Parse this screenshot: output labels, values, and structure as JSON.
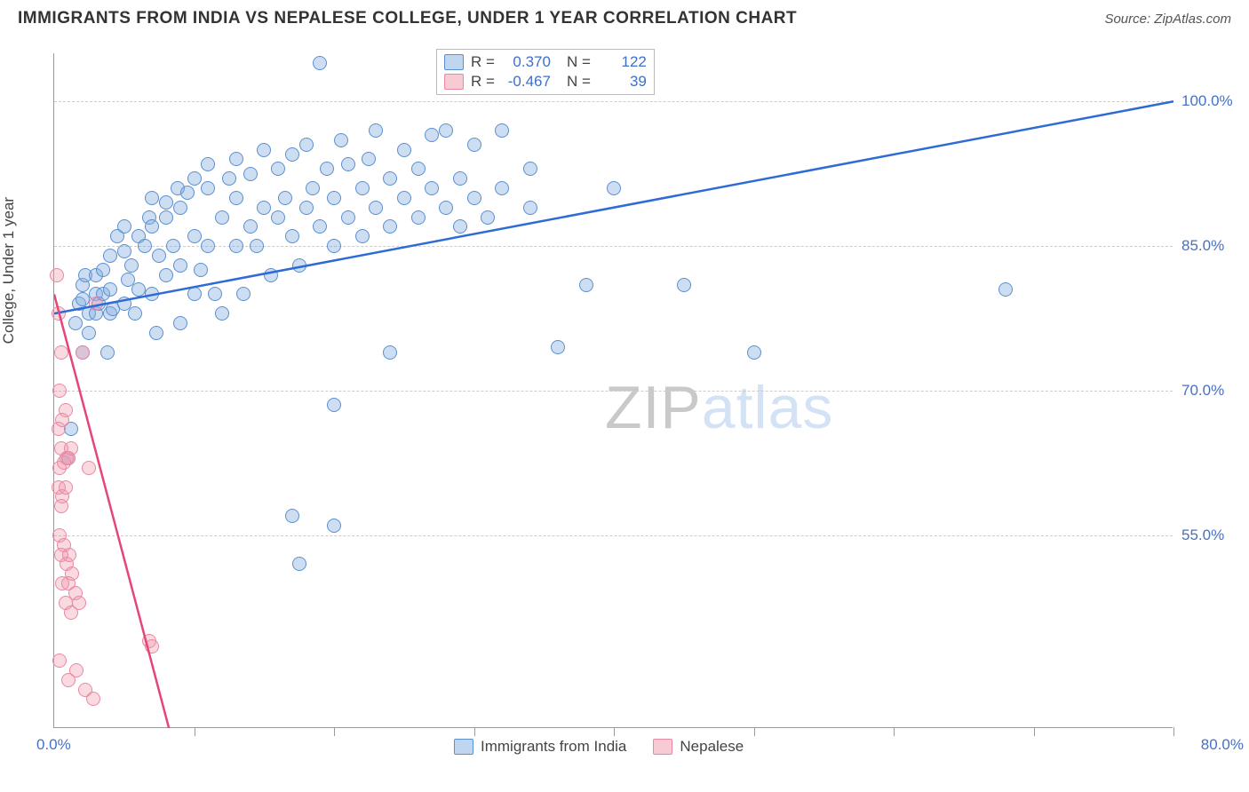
{
  "title": "IMMIGRANTS FROM INDIA VS NEPALESE COLLEGE, UNDER 1 YEAR CORRELATION CHART",
  "source": "Source: ZipAtlas.com",
  "ylabel": "College, Under 1 year",
  "watermark_zip": "ZIP",
  "watermark_atlas": "atlas",
  "legend_top": {
    "rows": [
      {
        "swatch": "blue",
        "r_label": "R =",
        "r": "0.370",
        "n_label": "N =",
        "n": "122"
      },
      {
        "swatch": "pink",
        "r_label": "R =",
        "r": "-0.467",
        "n_label": "N =",
        "n": "39"
      }
    ]
  },
  "legend_bottom": [
    {
      "swatch": "blue",
      "label": "Immigrants from India"
    },
    {
      "swatch": "pink",
      "label": "Nepalese"
    }
  ],
  "chart": {
    "type": "scatter",
    "xlim": [
      0,
      80
    ],
    "ylim": [
      35,
      105
    ],
    "x_ticks_every": 10,
    "y_ticks": [
      100.0,
      85.0,
      70.0,
      55.0
    ],
    "x_axis_min_label": "0.0%",
    "x_axis_max_label": "80.0%",
    "grid_color": "#cccccc",
    "background_color": "#ffffff",
    "series": [
      {
        "name": "india",
        "color_fill": "rgba(129,172,223,0.4)",
        "color_stroke": "#5a8fd0",
        "marker_radius": 8,
        "regression": {
          "x1": 0,
          "y1": 78,
          "x2": 80,
          "y2": 100,
          "color": "#2e6bd6",
          "width": 2.5
        },
        "points": [
          [
            1,
            63
          ],
          [
            1.2,
            66
          ],
          [
            1.5,
            77
          ],
          [
            1.8,
            79
          ],
          [
            2,
            79.5
          ],
          [
            2,
            81
          ],
          [
            2,
            74
          ],
          [
            2.2,
            82
          ],
          [
            2.5,
            76
          ],
          [
            2.5,
            78
          ],
          [
            3,
            78
          ],
          [
            3,
            80
          ],
          [
            3,
            82
          ],
          [
            3.2,
            79
          ],
          [
            3.5,
            82.5
          ],
          [
            3.5,
            80
          ],
          [
            3.8,
            74
          ],
          [
            4,
            78
          ],
          [
            4,
            80.5
          ],
          [
            4,
            84
          ],
          [
            4.2,
            78.5
          ],
          [
            4.5,
            86
          ],
          [
            5,
            79
          ],
          [
            5,
            84.5
          ],
          [
            5,
            87
          ],
          [
            5.3,
            81.5
          ],
          [
            5.5,
            83
          ],
          [
            5.8,
            78
          ],
          [
            6,
            80.5
          ],
          [
            6,
            86
          ],
          [
            6.5,
            85
          ],
          [
            6.8,
            88
          ],
          [
            7,
            80
          ],
          [
            7,
            87
          ],
          [
            7,
            90
          ],
          [
            7.3,
            76
          ],
          [
            7.5,
            84
          ],
          [
            8,
            82
          ],
          [
            8,
            88
          ],
          [
            8,
            89.5
          ],
          [
            8.5,
            85
          ],
          [
            8.8,
            91
          ],
          [
            9,
            83
          ],
          [
            9,
            77
          ],
          [
            9,
            89
          ],
          [
            9.5,
            90.5
          ],
          [
            10,
            80
          ],
          [
            10,
            86
          ],
          [
            10,
            92
          ],
          [
            10.5,
            82.5
          ],
          [
            11,
            85
          ],
          [
            11,
            91
          ],
          [
            11,
            93.5
          ],
          [
            11.5,
            80
          ],
          [
            12,
            88
          ],
          [
            12,
            78
          ],
          [
            12.5,
            92
          ],
          [
            13,
            85
          ],
          [
            13,
            90
          ],
          [
            13,
            94
          ],
          [
            13.5,
            80
          ],
          [
            14,
            87
          ],
          [
            14,
            92.5
          ],
          [
            14.5,
            85
          ],
          [
            15,
            89
          ],
          [
            15,
            95
          ],
          [
            15.5,
            82
          ],
          [
            16,
            88
          ],
          [
            16,
            93
          ],
          [
            16.5,
            90
          ],
          [
            17,
            86
          ],
          [
            17,
            94.5
          ],
          [
            17.5,
            83
          ],
          [
            18,
            89
          ],
          [
            18,
            95.5
          ],
          [
            18.5,
            91
          ],
          [
            19,
            87
          ],
          [
            19,
            104
          ],
          [
            19.5,
            93
          ],
          [
            20,
            85
          ],
          [
            20,
            90
          ],
          [
            20,
            68.5
          ],
          [
            20.5,
            96
          ],
          [
            21,
            88
          ],
          [
            21,
            93.5
          ],
          [
            22,
            86
          ],
          [
            22,
            91
          ],
          [
            22.5,
            94
          ],
          [
            23,
            89
          ],
          [
            23,
            97
          ],
          [
            24,
            87
          ],
          [
            24,
            92
          ],
          [
            24,
            74
          ],
          [
            25,
            90
          ],
          [
            25,
            95
          ],
          [
            26,
            88
          ],
          [
            26,
            93
          ],
          [
            27,
            91
          ],
          [
            27,
            96.5
          ],
          [
            28,
            89
          ],
          [
            28,
            97
          ],
          [
            29,
            87
          ],
          [
            29,
            92
          ],
          [
            30,
            90
          ],
          [
            30,
            95.5
          ],
          [
            31,
            88
          ],
          [
            32,
            91
          ],
          [
            32,
            97
          ],
          [
            34,
            89
          ],
          [
            34,
            93
          ],
          [
            36,
            74.5
          ],
          [
            38,
            81
          ],
          [
            40,
            91
          ],
          [
            45,
            81
          ],
          [
            50,
            74
          ],
          [
            68,
            80.5
          ],
          [
            17.5,
            52
          ],
          [
            17,
            57
          ],
          [
            20,
            56
          ]
        ]
      },
      {
        "name": "nepalese",
        "color_fill": "rgba(240,150,170,0.35)",
        "color_stroke": "#e888a3",
        "marker_radius": 8,
        "regression": {
          "x1": 0,
          "y1": 80,
          "x2": 8.2,
          "y2": 35,
          "color": "#e6457a",
          "width": 2.5
        },
        "points": [
          [
            0.2,
            82
          ],
          [
            0.3,
            78
          ],
          [
            0.5,
            74
          ],
          [
            0.4,
            70
          ],
          [
            0.8,
            68
          ],
          [
            0.3,
            66
          ],
          [
            0.6,
            67
          ],
          [
            0.5,
            64
          ],
          [
            0.9,
            63
          ],
          [
            0.4,
            62
          ],
          [
            0.7,
            62.5
          ],
          [
            1.0,
            63
          ],
          [
            0.3,
            60
          ],
          [
            0.6,
            59
          ],
          [
            0.5,
            58
          ],
          [
            0.8,
            60
          ],
          [
            1.2,
            64
          ],
          [
            0.4,
            55
          ],
          [
            0.7,
            54
          ],
          [
            0.5,
            53
          ],
          [
            0.9,
            52
          ],
          [
            1.1,
            53
          ],
          [
            0.6,
            50
          ],
          [
            1.3,
            51
          ],
          [
            1.0,
            50
          ],
          [
            0.8,
            48
          ],
          [
            1.5,
            49
          ],
          [
            1.2,
            47
          ],
          [
            1.8,
            48
          ],
          [
            0.4,
            42
          ],
          [
            1.0,
            40
          ],
          [
            1.6,
            41
          ],
          [
            2.2,
            39
          ],
          [
            2.8,
            38
          ],
          [
            6.8,
            44
          ],
          [
            7.0,
            43.5
          ],
          [
            2.0,
            74
          ],
          [
            2.5,
            62
          ],
          [
            3.0,
            79
          ]
        ]
      }
    ]
  }
}
